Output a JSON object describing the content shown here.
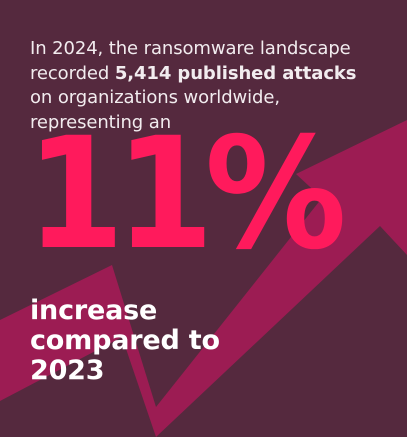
{
  "intro": {
    "line1": "In 2024, the ransomware landscape",
    "line2_prefix": "recorded ",
    "line2_bold": "5,414 published attacks",
    "line3": "on organizations worldwide,",
    "line4": "representing an"
  },
  "highlight": {
    "value": "11%"
  },
  "caption": {
    "line1": "increase",
    "line2": "compared to",
    "line3": "2023"
  },
  "colors": {
    "background": "#55293e",
    "arrow": "#9c1c53",
    "accent": "#ff1a5c",
    "text": "#ffffff"
  },
  "icons": {
    "arrow": "up-trend-arrow-icon"
  }
}
